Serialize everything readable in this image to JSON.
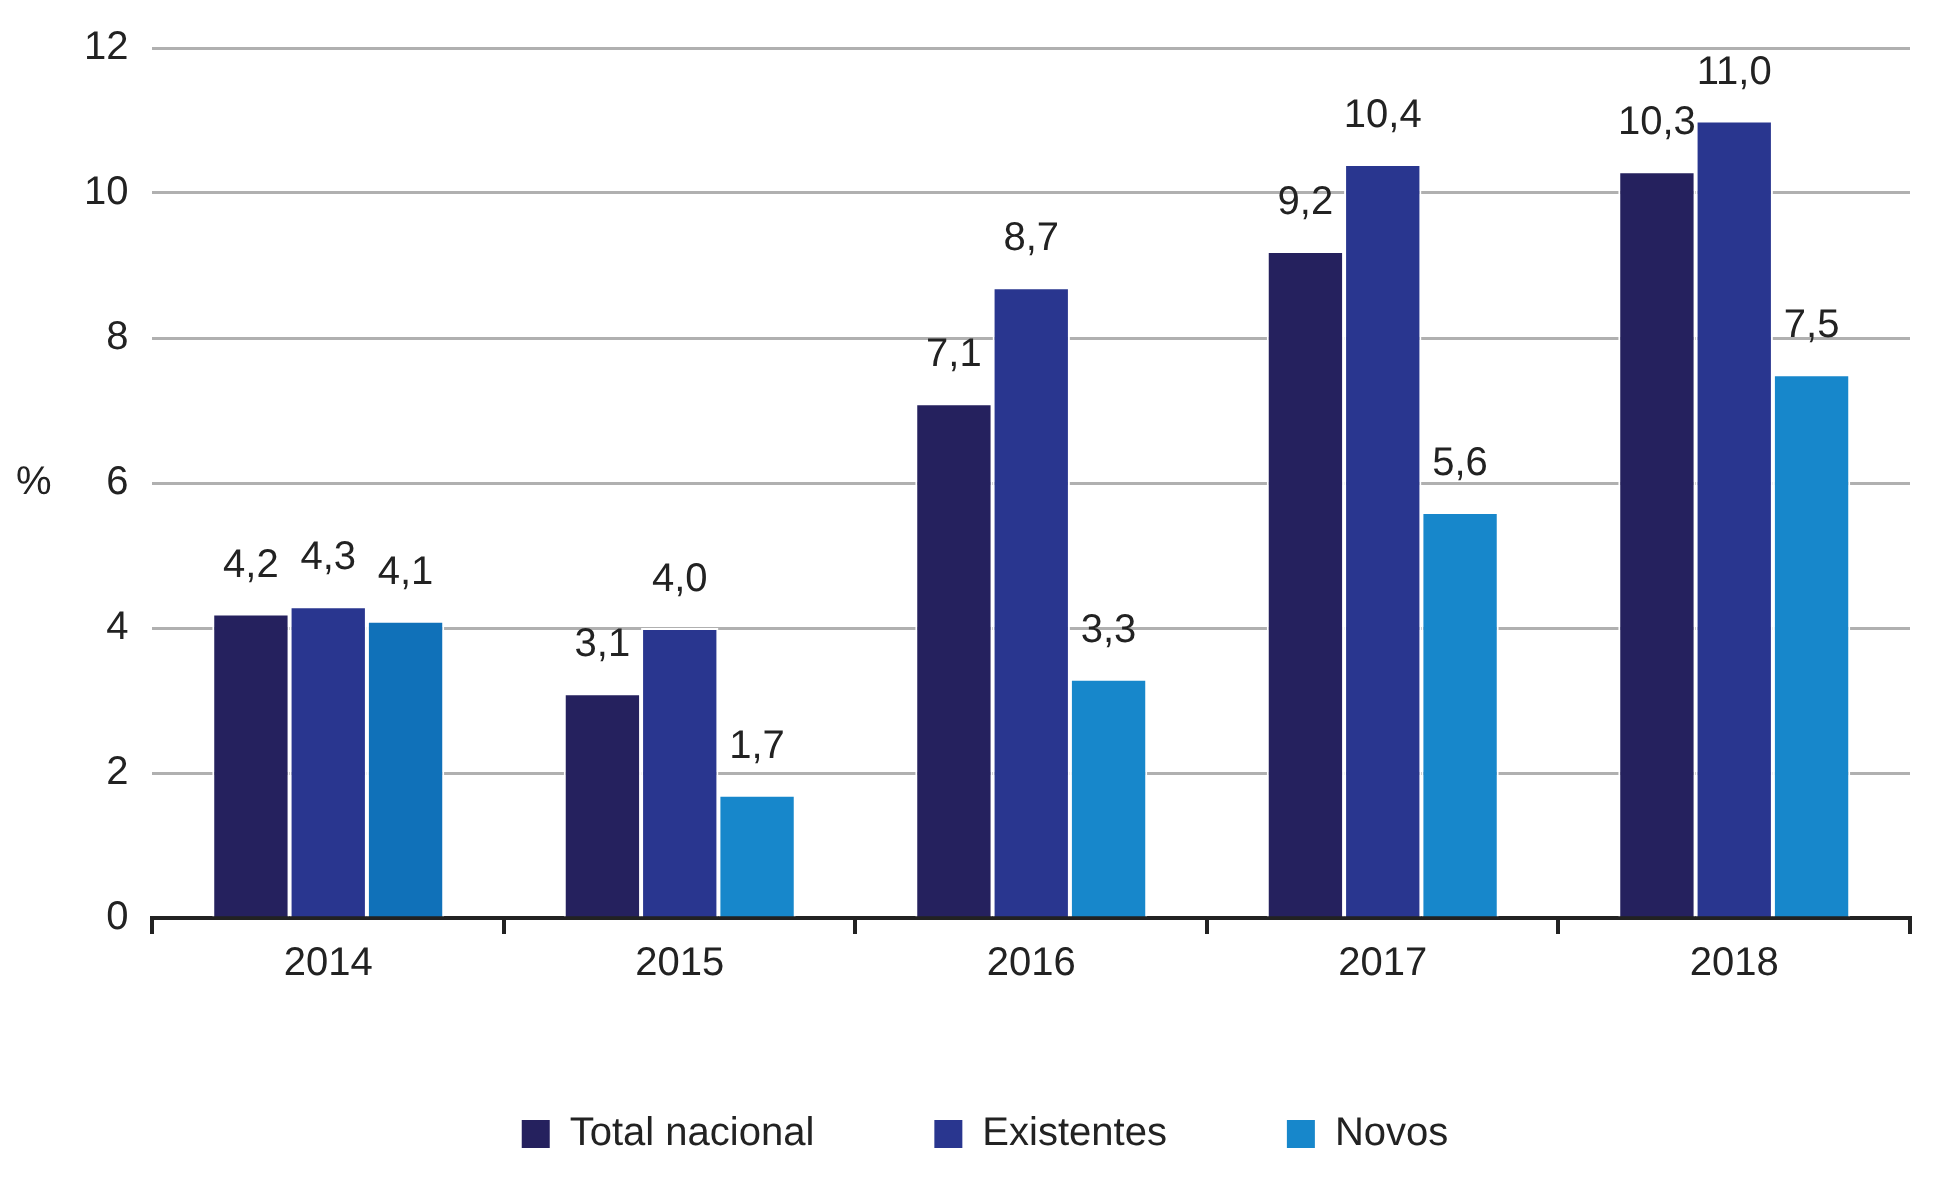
{
  "chart_data": {
    "type": "bar",
    "ylabel": "%",
    "categories": [
      "2014",
      "2015",
      "2016",
      "2017",
      "2018"
    ],
    "series": [
      {
        "name": "Total nacional",
        "color": "#25215e",
        "values": [
          4.2,
          3.1,
          7.1,
          9.2,
          10.3
        ],
        "value_labels": [
          "4,2",
          "3,1",
          "7,1",
          "9,2",
          "10,3"
        ]
      },
      {
        "name": "Existentes",
        "color": "#29368f",
        "values": [
          4.3,
          4.0,
          8.7,
          10.4,
          11.0
        ],
        "value_labels": [
          "4,3",
          "4,0",
          "8,7",
          "10,4",
          "11,0"
        ]
      },
      {
        "name": "Novos",
        "color": "#1787cb",
        "colors": [
          "#1071b9",
          "#1787cb",
          "#1787cb",
          "#1787cb",
          "#1787cb"
        ],
        "values": [
          4.1,
          1.7,
          3.3,
          5.6,
          7.5
        ],
        "value_labels": [
          "4,1",
          "1,7",
          "3,3",
          "5,6",
          "7,5"
        ]
      }
    ],
    "ylim": [
      0,
      12
    ],
    "yticks": [
      0,
      2,
      4,
      6,
      8,
      10,
      12
    ],
    "grid": "y",
    "legend": "bottom"
  }
}
